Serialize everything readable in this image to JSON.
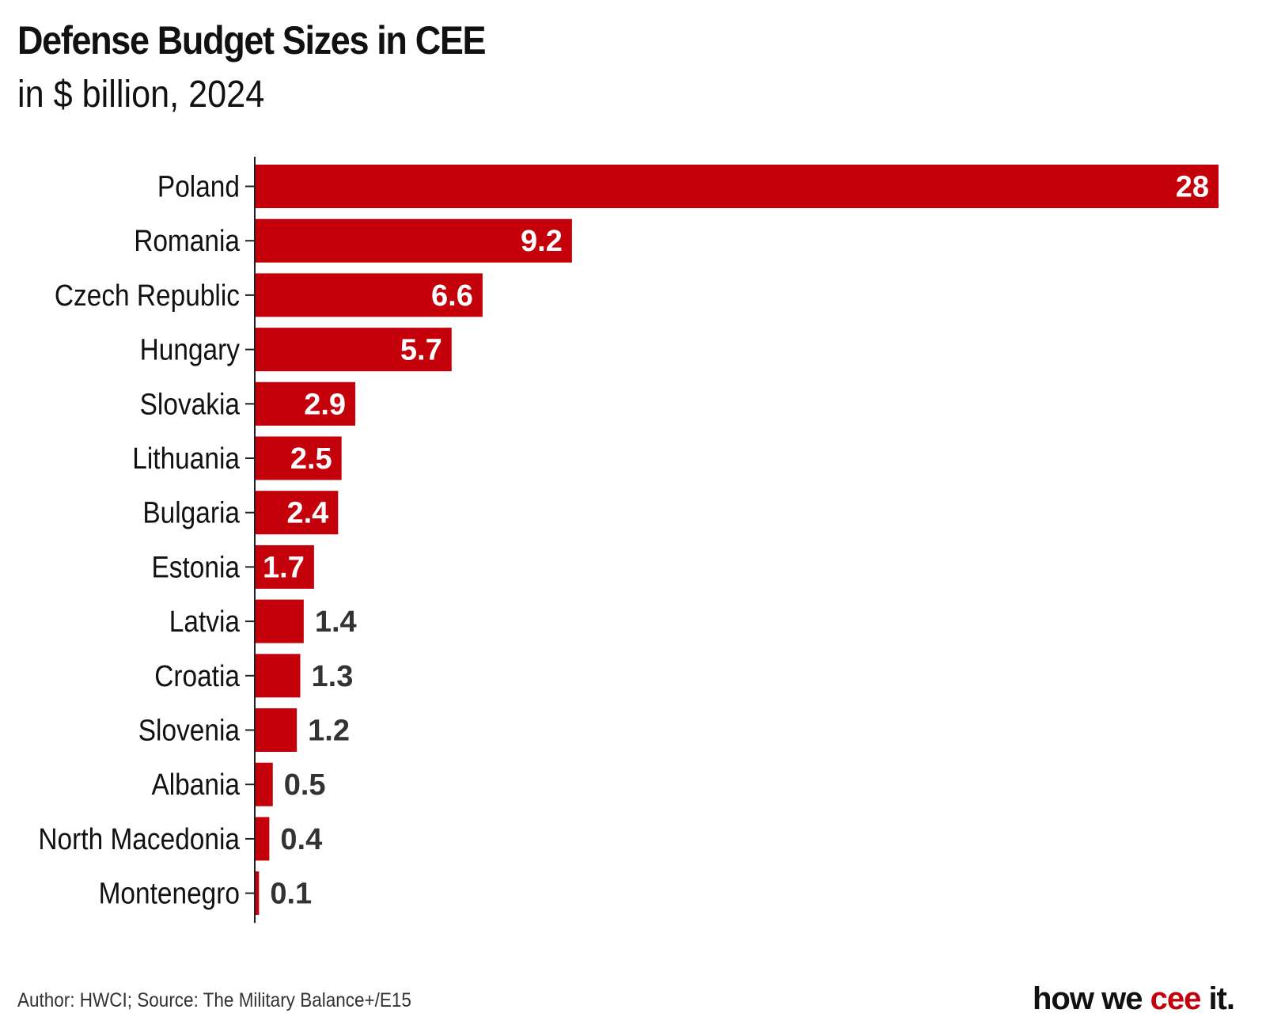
{
  "title": "Defense Budget Sizes in CEE",
  "subtitle": "in $ billion, 2024",
  "footer": "Author: HWCI; Source: The Military Balance+/E15",
  "brand": {
    "part1": "how we ",
    "part2": "cee",
    "part3": " it."
  },
  "colors": {
    "bar": "#c4000a",
    "label_inside": "#ffffff",
    "label_outside": "#333333",
    "brand_accent": "#c4000a"
  },
  "chart_data": {
    "type": "bar",
    "orientation": "horizontal",
    "title": "Defense Budget Sizes in CEE",
    "subtitle": "in $ billion, 2024",
    "categories": [
      "Poland",
      "Romania",
      "Czech Republic",
      "Hungary",
      "Slovakia",
      "Lithuania",
      "Bulgaria",
      "Estonia",
      "Latvia",
      "Croatia",
      "Slovenia",
      "Albania",
      "North Macedonia",
      "Montenegro"
    ],
    "values": [
      28,
      9.2,
      6.6,
      5.7,
      2.9,
      2.5,
      2.4,
      1.7,
      1.4,
      1.3,
      1.2,
      0.5,
      0.4,
      0.1
    ],
    "labels": [
      "28",
      "9.2",
      "6.6",
      "5.7",
      "2.9",
      "2.5",
      "2.4",
      "1.7",
      "1.4",
      "1.3",
      "1.2",
      "0.5",
      "0.4",
      "0.1"
    ],
    "xlim": [
      0,
      28
    ],
    "xlabel": "",
    "ylabel": "",
    "grid": false,
    "legend": "none"
  }
}
